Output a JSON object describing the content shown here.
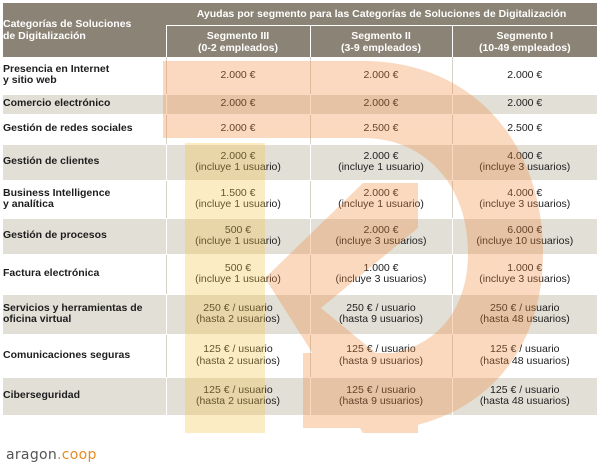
{
  "header": {
    "category_title_line1": "Categorías de Soluciones",
    "category_title_line2": "de Digitalización",
    "group_title": "Ayudas por segmento para las Categorías de Soluciones de Digitalización",
    "segments": [
      {
        "name": "Segmento III",
        "range": "(0-2 empleados)"
      },
      {
        "name": "Segmento II",
        "range": "(3-9 empleados)"
      },
      {
        "name": "Segmento I",
        "range": "(10-49 empleados)"
      }
    ]
  },
  "rows": [
    {
      "category": [
        "Presencia en Internet",
        "y sitio web"
      ],
      "values": [
        [
          "2.000 €",
          ""
        ],
        [
          "2.000 €",
          ""
        ],
        [
          "2.000 €",
          ""
        ]
      ]
    },
    {
      "category": [
        "Comercio electrónico",
        ""
      ],
      "values": [
        [
          "2.000 €",
          ""
        ],
        [
          "2.000 €",
          ""
        ],
        [
          "2.000 €",
          ""
        ]
      ]
    },
    {
      "category": [
        "Gestión de redes sociales",
        ""
      ],
      "values": [
        [
          "2.000 €",
          ""
        ],
        [
          "2.500 €",
          ""
        ],
        [
          "2.500 €",
          ""
        ]
      ]
    },
    {
      "category": [
        "Gestión de clientes",
        ""
      ],
      "values": [
        [
          "2.000 €",
          "(incluye 1 usuario)"
        ],
        [
          "2.000 €",
          "(incluye 1 usuario)"
        ],
        [
          "4.000 €",
          "(incluye 3 usuarios)"
        ]
      ]
    },
    {
      "category": [
        "Business Intelligence",
        "y analítica"
      ],
      "values": [
        [
          "1.500 €",
          "(incluye 1 usuario)"
        ],
        [
          "2.000 €",
          "(incluye 1 usuario)"
        ],
        [
          "4.000 €",
          "(incluye 3 usuarios)"
        ]
      ]
    },
    {
      "category": [
        "Gestión de procesos",
        ""
      ],
      "values": [
        [
          "500 €",
          "(incluye 1 usuario)"
        ],
        [
          "2.000 €",
          "(incluye 3 usuarios)"
        ],
        [
          "6.000 €",
          "(incluye 10 usuarios)"
        ]
      ]
    },
    {
      "category": [
        "Factura electrónica",
        ""
      ],
      "values": [
        [
          "500 €",
          "(incluye 1 usuario)"
        ],
        [
          "1.000 €",
          "(incluye 3 usuarios)"
        ],
        [
          "1.000 €",
          "(incluye 3 usuarios)"
        ]
      ]
    },
    {
      "category": [
        "Servicios y herramientas de",
        "oficina virtual"
      ],
      "values": [
        [
          "250 € / usuario",
          "(hasta 2 usuarios)"
        ],
        [
          "250 € / usuario",
          "(hasta 9 usuarios)"
        ],
        [
          "250 € / usuario",
          "(hasta 48 usuarios)"
        ]
      ]
    },
    {
      "category": [
        "Comunicaciones seguras",
        ""
      ],
      "values": [
        [
          "125 € / usuario",
          "(hasta 2 usuarios)"
        ],
        [
          "125 € / usuario",
          "(hasta 9 usuarios)"
        ],
        [
          "125 € / usuario",
          "(hasta 48 usuarios)"
        ]
      ]
    },
    {
      "category": [
        "Ciberseguridad",
        ""
      ],
      "values": [
        [
          "125 € / usuario",
          "(hasta 2 usuarios)"
        ],
        [
          "125 € / usuario",
          "(hasta 9 usuarios)"
        ],
        [
          "125 € / usuario",
          "(hasta 48 usuarios)"
        ]
      ]
    }
  ],
  "footer": {
    "brand": "aragon",
    "suffix": ".coop"
  },
  "colors": {
    "header_bg": "#8b8375",
    "band_bg": "#e2dfd6",
    "watermark": "#f08a3c",
    "accent": "#e98b1f"
  },
  "watermark_icon": "aragon-coop-logo-icon"
}
